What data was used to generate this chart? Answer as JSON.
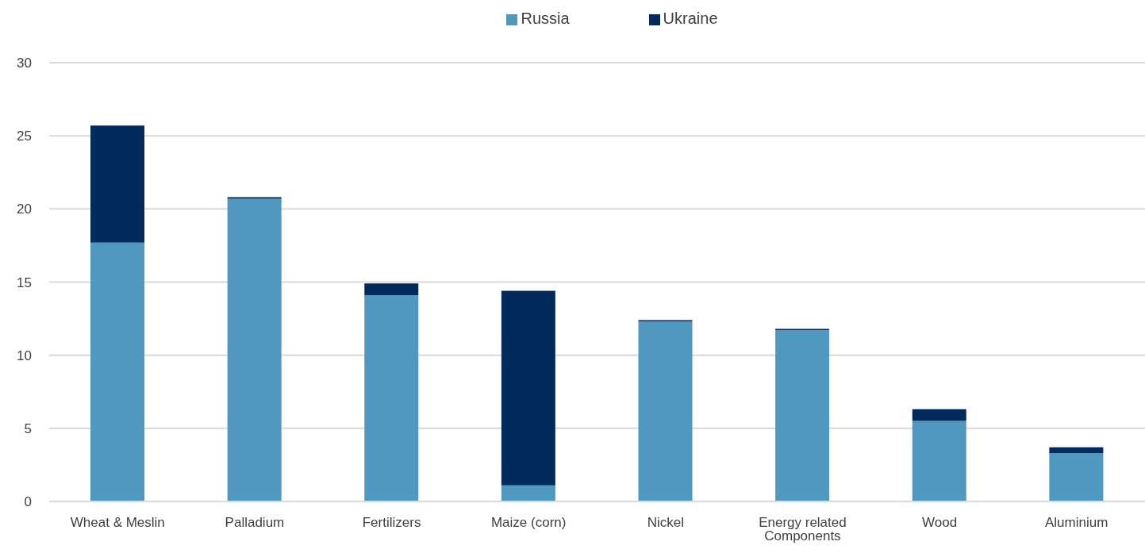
{
  "chart_data": {
    "type": "bar",
    "stacked": true,
    "categories": [
      "Wheat & Meslin",
      "Palladium",
      "Fertilizers",
      "Maize (corn)",
      "Nickel",
      "Energy related Components",
      "Wood",
      "Aluminium"
    ],
    "series": [
      {
        "name": "Russia",
        "color": "#4f98c0",
        "values": [
          17.7,
          20.7,
          14.1,
          1.1,
          12.3,
          11.7,
          5.5,
          3.3
        ]
      },
      {
        "name": "Ukraine",
        "color": "#002b5c",
        "values": [
          8.0,
          0.1,
          0.8,
          13.3,
          0.1,
          0.1,
          0.8,
          0.4
        ]
      }
    ],
    "ylim": [
      0,
      30
    ],
    "yticks": [
      0,
      5,
      10,
      15,
      20,
      25,
      30
    ],
    "grid": "y",
    "legend": "top"
  }
}
